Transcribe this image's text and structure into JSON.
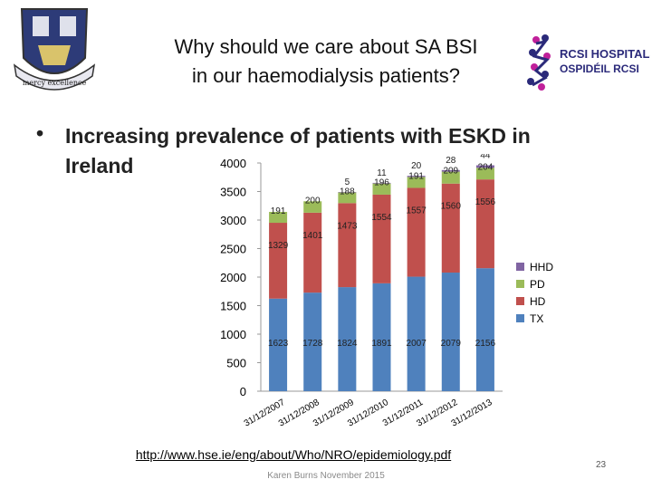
{
  "header": {
    "title_line1": "Why should we care about SA BSI",
    "title_line2": "in our haemodialysis patients?",
    "crest_motto": "mercy excellence",
    "logo_line1": "RCSI HOSPITALS",
    "logo_line2": "OSPIDÉIL RCSI",
    "brand_color": "#2b2a7a",
    "accent_color": "#c0209a"
  },
  "bullet": {
    "symbol": "•",
    "text_line1": "Increasing prevalence of patients with ESKD in",
    "text_line2": "Ireland"
  },
  "chart_data": {
    "type": "bar",
    "stacked": true,
    "categories": [
      "31/12/2007",
      "31/12/2008",
      "31/12/2009",
      "31/12/2010",
      "31/12/2011",
      "31/12/2012",
      "31/12/2013"
    ],
    "series": [
      {
        "name": "TX",
        "color": "#4f81bd",
        "values": [
          1623,
          1728,
          1824,
          1891,
          2007,
          2079,
          2156
        ]
      },
      {
        "name": "HD",
        "color": "#c0504d",
        "values": [
          1329,
          1401,
          1473,
          1554,
          1557,
          1560,
          1556
        ]
      },
      {
        "name": "PD",
        "color": "#9bbb59",
        "values": [
          191,
          200,
          188,
          196,
          191,
          209,
          204
        ]
      },
      {
        "name": "HHD",
        "color": "#8064a2",
        "values": [
          null,
          null,
          5,
          11,
          20,
          28,
          44
        ]
      }
    ],
    "ylim": [
      0,
      4000
    ],
    "yticks": [
      0,
      500,
      1000,
      1500,
      2000,
      2500,
      3000,
      3500,
      4000
    ],
    "legend_position": "right",
    "grid": false,
    "title": "",
    "xlabel": "",
    "ylabel": ""
  },
  "source_link": "http://www.hse.ie/eng/about/Who/NRO/epidemiology.pdf",
  "footer": {
    "author": "Karen Burns November 2015",
    "page": "23"
  }
}
